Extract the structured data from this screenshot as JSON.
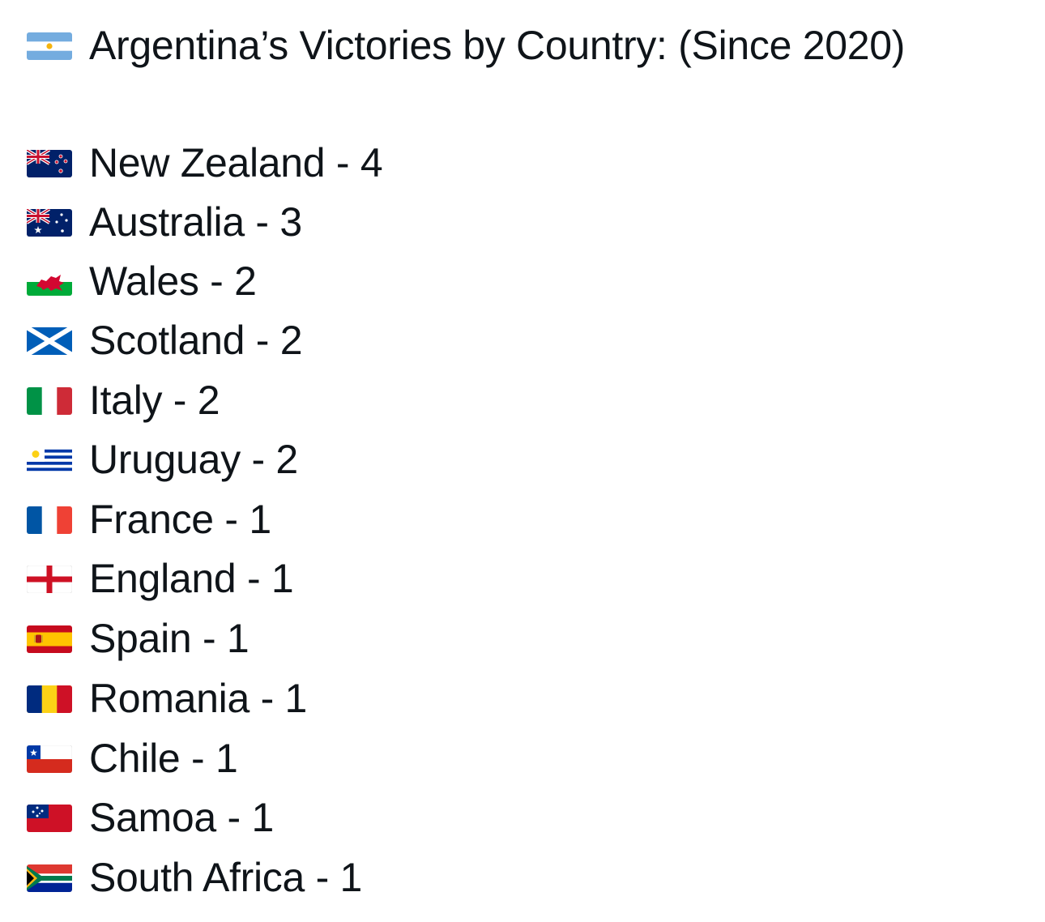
{
  "title": {
    "flag_icon": "argentina-flag-icon",
    "text": "Argentina’s Victories by Country: (Since 2020)"
  },
  "items": [
    {
      "flag_icon": "new-zealand-flag-icon",
      "text": "New Zealand - 4"
    },
    {
      "flag_icon": "australia-flag-icon",
      "text": "Australia - 3"
    },
    {
      "flag_icon": "wales-flag-icon",
      "text": "Wales - 2"
    },
    {
      "flag_icon": "scotland-flag-icon",
      "text": "Scotland - 2"
    },
    {
      "flag_icon": "italy-flag-icon",
      "text": "Italy - 2"
    },
    {
      "flag_icon": "uruguay-flag-icon",
      "text": "Uruguay - 2"
    },
    {
      "flag_icon": "france-flag-icon",
      "text": "France - 1"
    },
    {
      "flag_icon": "england-flag-icon",
      "text": "England - 1"
    },
    {
      "flag_icon": "spain-flag-icon",
      "text": "Spain - 1"
    },
    {
      "flag_icon": "romania-flag-icon",
      "text": "Romania - 1"
    },
    {
      "flag_icon": "chile-flag-icon",
      "text": "Chile - 1"
    },
    {
      "flag_icon": "samoa-flag-icon",
      "text": "Samoa - 1"
    },
    {
      "flag_icon": "south-africa-flag-icon",
      "text": "South Africa - 1"
    }
  ]
}
